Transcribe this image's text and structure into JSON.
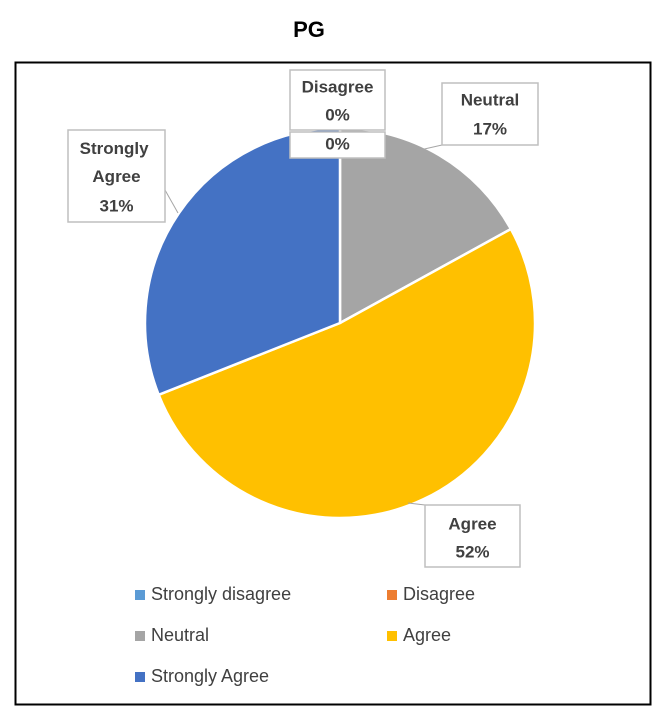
{
  "chart_data": {
    "type": "pie",
    "title": "PG",
    "categories": [
      "Strongly disagree",
      "Disagree",
      "Neutral",
      "Agree",
      "Strongly Agree"
    ],
    "values": [
      0,
      0,
      17,
      52,
      31
    ],
    "value_labels": [
      "0%",
      "0%",
      "17%",
      "52%",
      "31%"
    ],
    "colors": [
      "#5b9bd5",
      "#ed7d31",
      "#a5a5a5",
      "#ffc000",
      "#4472c4"
    ],
    "legend": "bottom"
  }
}
